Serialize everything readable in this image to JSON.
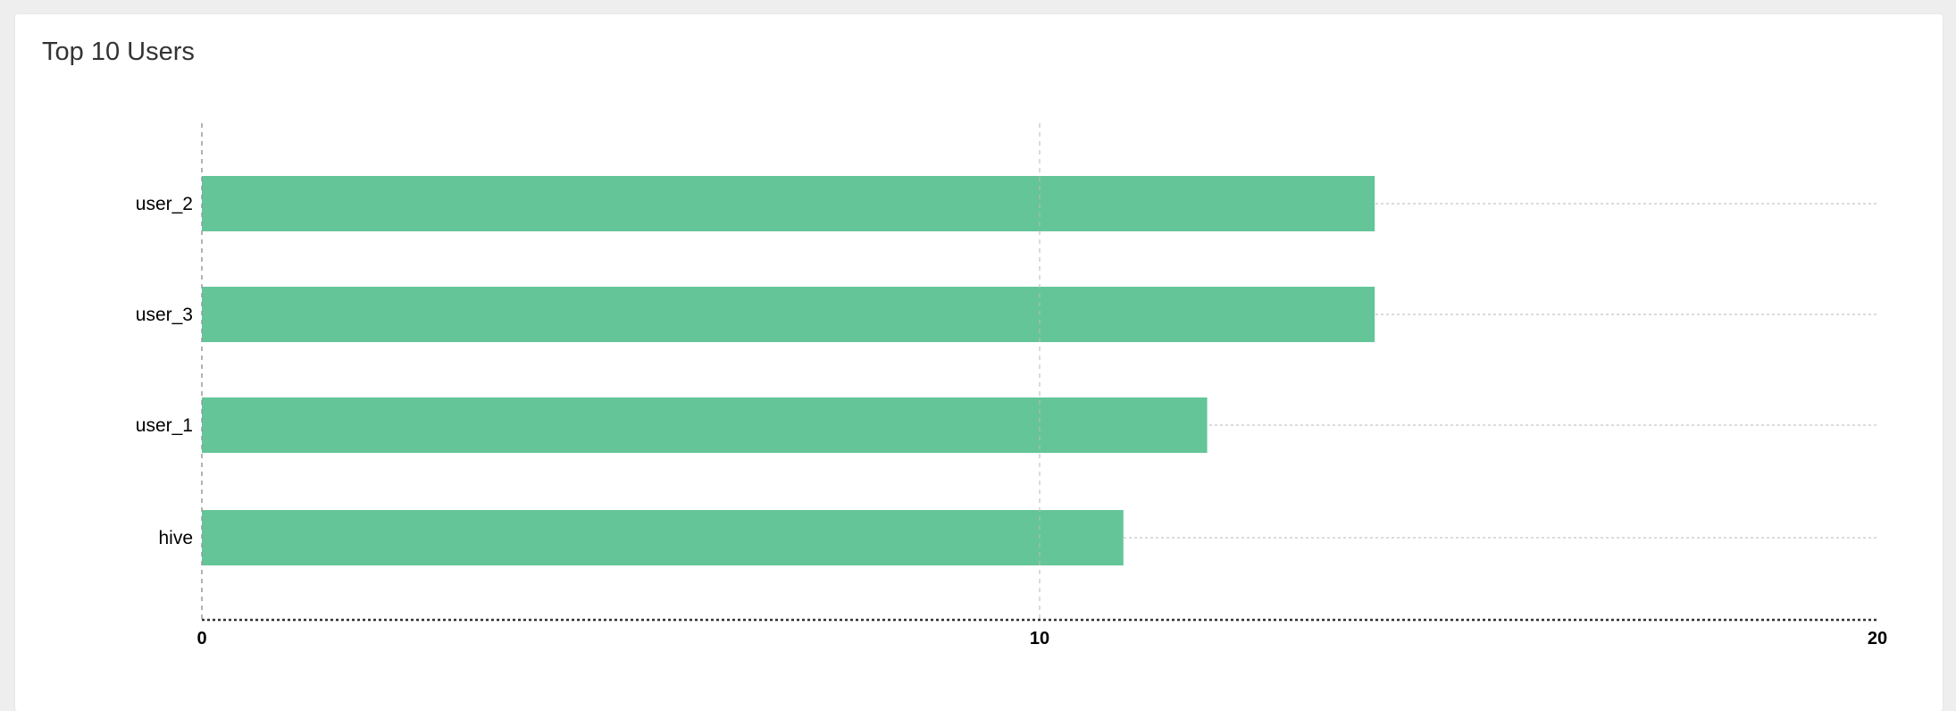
{
  "card": {
    "title": "Top 10 Users"
  },
  "chart_data": {
    "type": "bar",
    "orientation": "horizontal",
    "title": "Top 10 Users",
    "categories": [
      "user_2",
      "user_3",
      "user_1",
      "hive"
    ],
    "values": [
      14,
      14,
      12,
      11
    ],
    "xlim": [
      0,
      20
    ],
    "xticks": [
      "0",
      "10",
      "20"
    ],
    "grid": true,
    "bar_color": "#61c496"
  }
}
